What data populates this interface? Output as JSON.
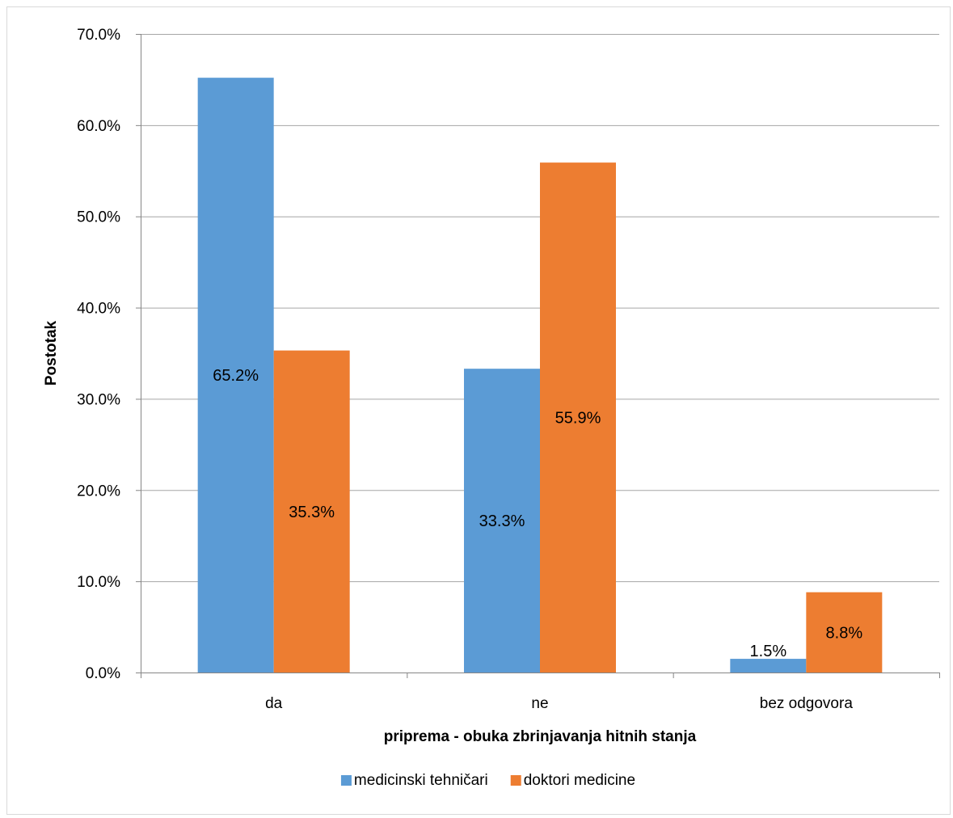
{
  "chart_data": {
    "type": "bar",
    "categories": [
      "da",
      "ne",
      "bez odgovora"
    ],
    "series": [
      {
        "name": "medicinski tehničari",
        "values": [
          65.2,
          33.3,
          1.5
        ],
        "labels": [
          "65.2%",
          "33.3%",
          "1.5%"
        ],
        "color": "#5b9bd5"
      },
      {
        "name": "doktori medicine",
        "values": [
          35.3,
          55.9,
          8.8
        ],
        "labels": [
          "35.3%",
          "55.9%",
          "8.8%"
        ],
        "color": "#ed7d31"
      }
    ],
    "xlabel": "priprema - obuka zbrinjavanja hitnih stanja",
    "ylabel": "Postotak",
    "ylim": [
      0,
      70
    ],
    "yticks": [
      0,
      10,
      20,
      30,
      40,
      50,
      60,
      70
    ],
    "ytick_labels": [
      "0.0%",
      "10.0%",
      "20.0%",
      "30.0%",
      "40.0%",
      "50.0%",
      "60.0%",
      "70.0%"
    ],
    "grid": true,
    "legend_position": "bottom",
    "gridline_color": "#a6a6a6",
    "axis_color": "#868686"
  }
}
